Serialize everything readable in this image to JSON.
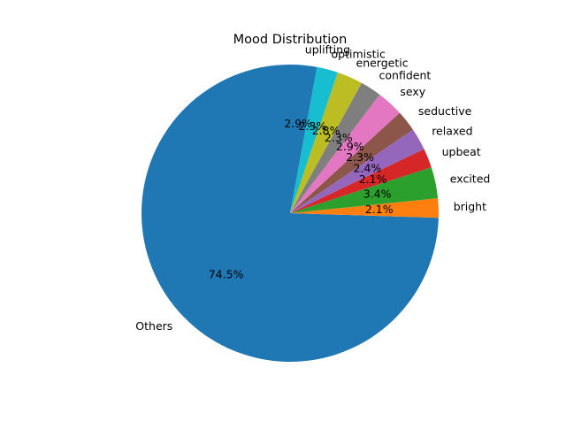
{
  "chart_data": {
    "type": "pie",
    "title": "Mood Distribution",
    "start_angle_deg": 90,
    "direction": "counterclockwise",
    "slices": [
      {
        "label": "Others",
        "value": 74.5,
        "pct_label": "74.5%",
        "color": "#1f77b4"
      },
      {
        "label": "bright",
        "value": 2.1,
        "pct_label": "2.1%",
        "color": "#ff7f0e"
      },
      {
        "label": "excited",
        "value": 3.4,
        "pct_label": "3.4%",
        "color": "#2ca02c"
      },
      {
        "label": "upbeat",
        "value": 2.1,
        "pct_label": "2.1%",
        "color": "#d62728"
      },
      {
        "label": "relaxed",
        "value": 2.4,
        "pct_label": "2.4%",
        "color": "#9467bd"
      },
      {
        "label": "seductive",
        "value": 2.3,
        "pct_label": "2.3%",
        "color": "#8c564b"
      },
      {
        "label": "sexy",
        "value": 2.9,
        "pct_label": "2.9%",
        "color": "#e377c2"
      },
      {
        "label": "confident",
        "value": 2.3,
        "pct_label": "2.3%",
        "color": "#7f7f7f"
      },
      {
        "label": "energetic",
        "value": 2.8,
        "pct_label": "2.8%",
        "color": "#bcbd22"
      },
      {
        "label": "optimistic",
        "value": 2.3,
        "pct_label": "2.3%",
        "color": "#17becf"
      },
      {
        "label": "uplifting",
        "value": 2.9,
        "pct_label": "2.9%",
        "color": "#1f77b4"
      }
    ]
  }
}
